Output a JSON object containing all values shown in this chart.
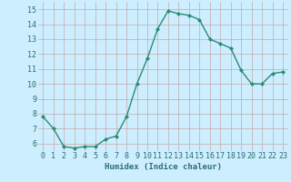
{
  "x": [
    0,
    1,
    2,
    3,
    4,
    5,
    6,
    7,
    8,
    9,
    10,
    11,
    12,
    13,
    14,
    15,
    16,
    17,
    18,
    19,
    20,
    21,
    22,
    23
  ],
  "y": [
    7.8,
    7.0,
    5.8,
    5.7,
    5.8,
    5.8,
    6.3,
    6.5,
    7.8,
    10.0,
    11.7,
    13.7,
    14.9,
    14.7,
    14.6,
    14.3,
    13.0,
    12.7,
    12.4,
    10.9,
    10.0,
    10.0,
    10.7,
    10.8
  ],
  "xlim": [
    -0.5,
    23.5
  ],
  "ylim": [
    5.5,
    15.5
  ],
  "yticks": [
    6,
    7,
    8,
    9,
    10,
    11,
    12,
    13,
    14,
    15
  ],
  "xticks": [
    0,
    1,
    2,
    3,
    4,
    5,
    6,
    7,
    8,
    9,
    10,
    11,
    12,
    13,
    14,
    15,
    16,
    17,
    18,
    19,
    20,
    21,
    22,
    23
  ],
  "xlabel": "Humidex (Indice chaleur)",
  "line_color": "#2d8b74",
  "marker": "D",
  "marker_size": 2.0,
  "line_width": 1.0,
  "bg_color": "#cceeff",
  "grid_color": "#c8a8a8",
  "tick_label_color": "#2d6e6e",
  "xlabel_fontsize": 6.5,
  "tick_fontsize": 6.0
}
